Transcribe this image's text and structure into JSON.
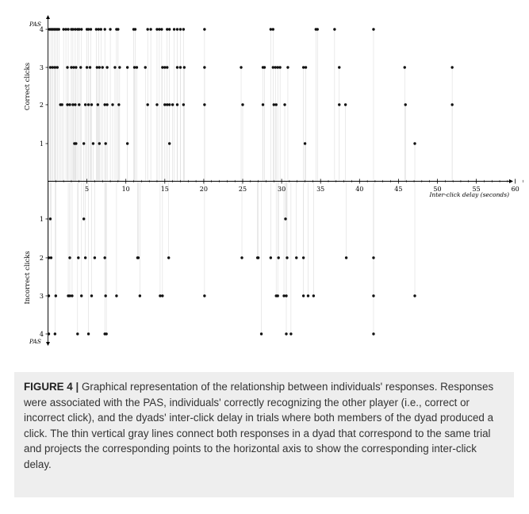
{
  "chart_data": {
    "type": "scatter",
    "x_axis": {
      "label": "Inter-click delay (seconds)",
      "range": [
        0,
        61
      ],
      "ticks": [
        5,
        10,
        15,
        20,
        25,
        30,
        35,
        40,
        45,
        50,
        55,
        60
      ]
    },
    "y_axis": {
      "top_label": "PAS",
      "bottom_label": "PAS",
      "upper_panel_label": "Correct clicks",
      "lower_panel_label": "Incorrect clicks",
      "upper_ticks": [
        4,
        3,
        2,
        1
      ],
      "lower_ticks": [
        1,
        2,
        3,
        4
      ]
    },
    "grid": false,
    "series": [
      {
        "name": "Correct clicks",
        "points": [
          {
            "pas": 4,
            "x": [
              0.2,
              0.4,
              0.6,
              0.8,
              1.0,
              1.2,
              1.4,
              2.0,
              2.3,
              2.6,
              3.0,
              3.2,
              3.5,
              3.8,
              4.0,
              4.3,
              5.0,
              5.2,
              5.5,
              6.2,
              6.5,
              6.8,
              7.3,
              8.0,
              8.8,
              9.0,
              11.0,
              11.2,
              12.8,
              13.2,
              14.0,
              14.3,
              14.6,
              15.3,
              15.6,
              16.2,
              16.6,
              17.0,
              17.4,
              20.1,
              28.6,
              28.9,
              34.4,
              34.6,
              36.8,
              41.8
            ]
          },
          {
            "pas": 3,
            "x": [
              0.3,
              0.6,
              0.9,
              1.2,
              2.5,
              3.0,
              3.3,
              3.6,
              4.2,
              5.0,
              5.4,
              6.3,
              6.6,
              7.0,
              7.6,
              8.6,
              9.2,
              10.2,
              11.1,
              11.4,
              12.5,
              14.7,
              15.0,
              15.3,
              16.6,
              17.0,
              17.5,
              20.1,
              24.8,
              27.6,
              27.8,
              28.9,
              29.2,
              29.5,
              29.8,
              30.8,
              32.8,
              33.1,
              37.4,
              45.8,
              51.9
            ]
          },
          {
            "pas": 2,
            "x": [
              1.6,
              1.8,
              2.5,
              2.8,
              3.2,
              3.5,
              4.0,
              4.8,
              5.2,
              5.6,
              6.4,
              7.3,
              7.6,
              8.3,
              9.1,
              12.8,
              14.0,
              15.0,
              15.3,
              15.6,
              16.0,
              16.6,
              17.4,
              20.1,
              25.0,
              27.6,
              29.0,
              29.3,
              30.4,
              37.4,
              38.2,
              45.9,
              51.9
            ]
          },
          {
            "pas": 1,
            "x": [
              3.4,
              3.6,
              4.6,
              5.8,
              6.6,
              7.4,
              10.2,
              15.6,
              33.0,
              47.1
            ]
          }
        ]
      },
      {
        "name": "Incorrect clicks",
        "points": [
          {
            "pas": 1,
            "x": [
              0.3,
              4.6,
              30.5
            ]
          },
          {
            "pas": 2,
            "x": [
              0.1,
              0.4,
              2.8,
              3.9,
              4.8,
              6.0,
              7.3,
              11.5,
              11.6,
              15.5,
              24.9,
              26.9,
              27.0,
              28.6,
              29.6,
              30.7,
              31.9,
              32.8,
              38.3,
              41.8
            ]
          },
          {
            "pas": 3,
            "x": [
              0.1,
              1.0,
              2.6,
              2.8,
              3.1,
              4.3,
              5.6,
              7.4,
              8.8,
              11.8,
              14.4,
              14.7,
              20.1,
              29.3,
              29.5,
              30.3,
              30.6,
              32.8,
              33.4,
              34.1,
              41.8,
              47.1
            ]
          },
          {
            "pas": 4,
            "x": [
              0.1,
              0.9,
              3.8,
              5.2,
              7.3,
              7.5,
              27.4,
              30.6,
              31.2,
              41.8
            ]
          }
        ]
      }
    ]
  },
  "caption": {
    "label": "FIGURE 4",
    "separator": "|",
    "text": "Graphical representation of the relationship between individuals' responses. Responses were associated with the PAS, individuals' correctly recognizing the other player (i.e., correct or incorrect click), and the dyads' inter-click delay in trials where both members of the dyad produced a click. The thin vertical gray lines connect both responses in a dyad that correspond to the same trial and projects the corresponding points to the horizontal axis to show the corresponding inter-click delay."
  }
}
